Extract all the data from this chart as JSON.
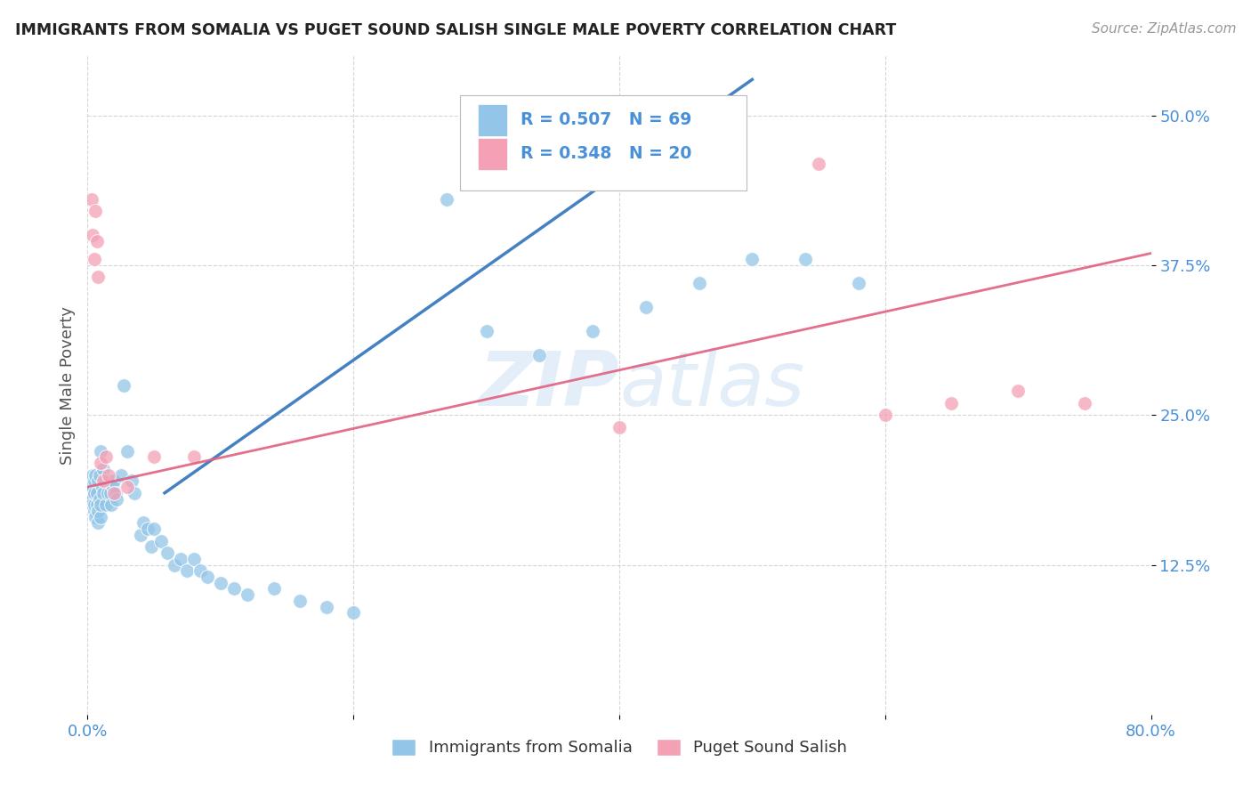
{
  "title": "IMMIGRANTS FROM SOMALIA VS PUGET SOUND SALISH SINGLE MALE POVERTY CORRELATION CHART",
  "source": "Source: ZipAtlas.com",
  "ylabel": "Single Male Poverty",
  "xlim": [
    0.0,
    0.8
  ],
  "ylim": [
    0.0,
    0.55
  ],
  "xticks": [
    0.0,
    0.2,
    0.4,
    0.6,
    0.8
  ],
  "xticklabels": [
    "0.0%",
    "",
    "",
    "",
    "80.0%"
  ],
  "ytick_positions": [
    0.125,
    0.25,
    0.375,
    0.5
  ],
  "ytick_labels": [
    "12.5%",
    "25.0%",
    "37.5%",
    "50.0%"
  ],
  "grid_color": "#cccccc",
  "background_color": "#ffffff",
  "blue_color": "#92c5e8",
  "blue_line_color": "#3a7abf",
  "pink_color": "#f4a0b5",
  "pink_line_color": "#e06080",
  "R_blue": 0.507,
  "N_blue": 69,
  "R_pink": 0.348,
  "N_pink": 20,
  "legend_labels": [
    "Immigrants from Somalia",
    "Puget Sound Salish"
  ],
  "blue_line_x0": 0.058,
  "blue_line_y0": 0.185,
  "blue_line_x1": 0.5,
  "blue_line_y1": 0.53,
  "pink_line_x0": 0.0,
  "pink_line_y0": 0.19,
  "pink_line_x1": 0.8,
  "pink_line_y1": 0.385,
  "blue_x": [
    0.002,
    0.003,
    0.003,
    0.004,
    0.004,
    0.004,
    0.005,
    0.005,
    0.005,
    0.005,
    0.006,
    0.006,
    0.007,
    0.007,
    0.008,
    0.008,
    0.008,
    0.009,
    0.009,
    0.01,
    0.01,
    0.01,
    0.011,
    0.012,
    0.012,
    0.013,
    0.014,
    0.015,
    0.016,
    0.017,
    0.018,
    0.019,
    0.02,
    0.021,
    0.022,
    0.025,
    0.027,
    0.03,
    0.033,
    0.035,
    0.04,
    0.042,
    0.045,
    0.048,
    0.05,
    0.055,
    0.06,
    0.065,
    0.07,
    0.075,
    0.08,
    0.085,
    0.09,
    0.1,
    0.11,
    0.12,
    0.14,
    0.16,
    0.18,
    0.2,
    0.27,
    0.3,
    0.34,
    0.38,
    0.42,
    0.46,
    0.5,
    0.54,
    0.58
  ],
  "blue_y": [
    0.185,
    0.18,
    0.175,
    0.19,
    0.195,
    0.2,
    0.17,
    0.175,
    0.185,
    0.195,
    0.165,
    0.2,
    0.175,
    0.185,
    0.16,
    0.17,
    0.195,
    0.18,
    0.2,
    0.165,
    0.175,
    0.22,
    0.19,
    0.205,
    0.185,
    0.195,
    0.175,
    0.185,
    0.195,
    0.185,
    0.175,
    0.19,
    0.195,
    0.185,
    0.18,
    0.2,
    0.275,
    0.22,
    0.195,
    0.185,
    0.15,
    0.16,
    0.155,
    0.14,
    0.155,
    0.145,
    0.135,
    0.125,
    0.13,
    0.12,
    0.13,
    0.12,
    0.115,
    0.11,
    0.105,
    0.1,
    0.105,
    0.095,
    0.09,
    0.085,
    0.43,
    0.32,
    0.3,
    0.32,
    0.34,
    0.36,
    0.38,
    0.38,
    0.36
  ],
  "pink_x": [
    0.003,
    0.004,
    0.005,
    0.006,
    0.007,
    0.008,
    0.01,
    0.012,
    0.014,
    0.016,
    0.02,
    0.03,
    0.05,
    0.08,
    0.4,
    0.55,
    0.6,
    0.65,
    0.7,
    0.75
  ],
  "pink_y": [
    0.43,
    0.4,
    0.38,
    0.42,
    0.395,
    0.365,
    0.21,
    0.195,
    0.215,
    0.2,
    0.185,
    0.19,
    0.215,
    0.215,
    0.24,
    0.46,
    0.25,
    0.26,
    0.27,
    0.26
  ]
}
